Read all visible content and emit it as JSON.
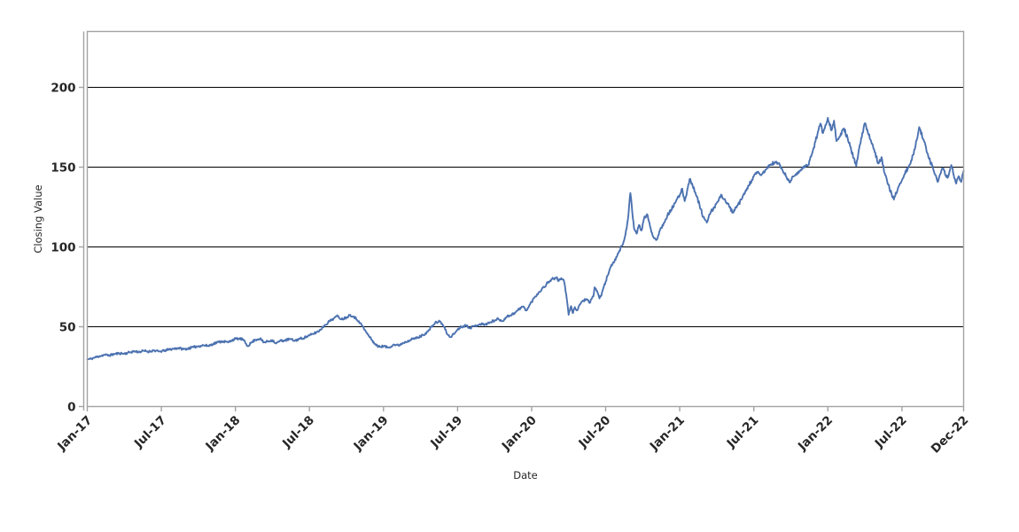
{
  "figure": {
    "background": "#ffffff"
  },
  "chart_data": {
    "type": "line",
    "title": "",
    "xlabel": "Date",
    "ylabel": "Closing Value",
    "legend": "none",
    "x_axis": {
      "unit": "months since Jan-2017",
      "range_months": [
        0,
        71
      ],
      "ticks": [
        {
          "m": 0,
          "label": "Jan-17"
        },
        {
          "m": 6,
          "label": "Jul-17"
        },
        {
          "m": 12,
          "label": "Jan-18"
        },
        {
          "m": 18,
          "label": "Jul-18"
        },
        {
          "m": 24,
          "label": "Jan-19"
        },
        {
          "m": 30,
          "label": "Jul-19"
        },
        {
          "m": 36,
          "label": "Jan-20"
        },
        {
          "m": 42,
          "label": "Jul-20"
        },
        {
          "m": 48,
          "label": "Jan-21"
        },
        {
          "m": 54,
          "label": "Jul-21"
        },
        {
          "m": 60,
          "label": "Jan-22"
        },
        {
          "m": 66,
          "label": "Jul-22"
        },
        {
          "m": 71,
          "label": "Dec-22"
        }
      ],
      "tick_rotation_deg": 45
    },
    "y_axis": {
      "ticks": [
        0,
        50,
        100,
        150,
        200
      ],
      "range": [
        0,
        235
      ]
    },
    "grid": {
      "horizontal_at": [
        50,
        100,
        150,
        200
      ],
      "color": "#000000",
      "vertical": false
    },
    "styles": {
      "line_color": "#4c72b0",
      "line_width": 1.9,
      "spine_color": "#a3a3a3",
      "tick_label_color": "#262626",
      "axis_label_color": "#262626",
      "tick_label_bold": true
    },
    "series": [
      {
        "name": "Closing Value",
        "points_format": "[months_since_Jan_2017, closing_value]",
        "points": [
          [
            0,
            29.5
          ],
          [
            0.3,
            29.9
          ],
          [
            0.6,
            30.7
          ],
          [
            1,
            31.6
          ],
          [
            1.4,
            32.4
          ],
          [
            1.8,
            32.1
          ],
          [
            2.2,
            32.9
          ],
          [
            2.6,
            33.4
          ],
          [
            3,
            33.1
          ],
          [
            3.4,
            33.9
          ],
          [
            3.8,
            34.6
          ],
          [
            4.2,
            34.2
          ],
          [
            4.6,
            34.9
          ],
          [
            5,
            34.4
          ],
          [
            5.4,
            35.2
          ],
          [
            5.8,
            34.4
          ],
          [
            6.2,
            34.9
          ],
          [
            6.6,
            35.7
          ],
          [
            7,
            36.2
          ],
          [
            7.4,
            36.7
          ],
          [
            7.8,
            35.9
          ],
          [
            8.2,
            36.4
          ],
          [
            8.6,
            37.2
          ],
          [
            9,
            37.8
          ],
          [
            9.4,
            38.4
          ],
          [
            9.8,
            38.0
          ],
          [
            10.2,
            39.3
          ],
          [
            10.6,
            40.4
          ],
          [
            11,
            40.9
          ],
          [
            11.4,
            40.2
          ],
          [
            11.7,
            41.5
          ],
          [
            12,
            42.4
          ],
          [
            12.3,
            42.5
          ],
          [
            12.6,
            42.1
          ],
          [
            13,
            37.9
          ],
          [
            13.3,
            40.1
          ],
          [
            13.6,
            41.8
          ],
          [
            14,
            42.6
          ],
          [
            14.3,
            40.1
          ],
          [
            14.6,
            40.8
          ],
          [
            15,
            41.6
          ],
          [
            15.3,
            39.5
          ],
          [
            15.6,
            41.1
          ],
          [
            16,
            41.4
          ],
          [
            16.4,
            42.3
          ],
          [
            16.8,
            41.2
          ],
          [
            17.2,
            42.4
          ],
          [
            17.6,
            43.2
          ],
          [
            18,
            44.5
          ],
          [
            18.4,
            45.9
          ],
          [
            18.8,
            47.5
          ],
          [
            19.2,
            50.7
          ],
          [
            19.6,
            53.3
          ],
          [
            20,
            55.5
          ],
          [
            20.3,
            56.7
          ],
          [
            20.6,
            54.7
          ],
          [
            21,
            55.9
          ],
          [
            21.3,
            57.5
          ],
          [
            21.6,
            56.3
          ],
          [
            22,
            53.5
          ],
          [
            22.3,
            50.3
          ],
          [
            22.6,
            46.5
          ],
          [
            23,
            42.3
          ],
          [
            23.3,
            39.3
          ],
          [
            23.6,
            37.4
          ],
          [
            24,
            37.9
          ],
          [
            24.4,
            36.9
          ],
          [
            24.8,
            38.8
          ],
          [
            25.2,
            38.3
          ],
          [
            25.6,
            39.9
          ],
          [
            26,
            41.3
          ],
          [
            26.4,
            42.4
          ],
          [
            26.8,
            43.2
          ],
          [
            27.2,
            44.8
          ],
          [
            27.6,
            47.0
          ],
          [
            28,
            51.0
          ],
          [
            28.3,
            52.9
          ],
          [
            28.6,
            53.3
          ],
          [
            28.9,
            49.9
          ],
          [
            29.2,
            45.0
          ],
          [
            29.4,
            43.5
          ],
          [
            29.7,
            45.4
          ],
          [
            30,
            48.3
          ],
          [
            30.3,
            50.0
          ],
          [
            30.7,
            50.9
          ],
          [
            31,
            49.4
          ],
          [
            31.4,
            50.4
          ],
          [
            31.8,
            51.7
          ],
          [
            32.2,
            51.4
          ],
          [
            32.6,
            52.5
          ],
          [
            33,
            54.0
          ],
          [
            33.3,
            54.9
          ],
          [
            33.6,
            53.5
          ],
          [
            34,
            56.3
          ],
          [
            34.4,
            57.7
          ],
          [
            34.7,
            59.0
          ],
          [
            35,
            61.1
          ],
          [
            35.3,
            62.7
          ],
          [
            35.6,
            60.2
          ],
          [
            36,
            65.7
          ],
          [
            36.3,
            69.0
          ],
          [
            36.6,
            71.7
          ],
          [
            37,
            74.9
          ],
          [
            37.3,
            77.5
          ],
          [
            37.6,
            79.7
          ],
          [
            38,
            80.7
          ],
          [
            38.2,
            78.7
          ],
          [
            38.4,
            80.5
          ],
          [
            38.6,
            79.3
          ],
          [
            38.8,
            70.5
          ],
          [
            39,
            57.5
          ],
          [
            39.2,
            62.9
          ],
          [
            39.35,
            58.5
          ],
          [
            39.5,
            62.3
          ],
          [
            39.7,
            60.3
          ],
          [
            39.9,
            63.9
          ],
          [
            40.1,
            65.9
          ],
          [
            40.4,
            67.3
          ],
          [
            40.7,
            64.9
          ],
          [
            41,
            69.0
          ],
          [
            41.1,
            74.7
          ],
          [
            41.3,
            72.5
          ],
          [
            41.5,
            67.7
          ],
          [
            41.7,
            71.3
          ],
          [
            42,
            78.3
          ],
          [
            42.3,
            85.3
          ],
          [
            42.6,
            90.3
          ],
          [
            42.9,
            93.7
          ],
          [
            43.1,
            97.5
          ],
          [
            43.35,
            100.9
          ],
          [
            43.6,
            107.7
          ],
          [
            43.8,
            117.3
          ],
          [
            44,
            133.8
          ],
          [
            44.15,
            122.1
          ],
          [
            44.3,
            111.5
          ],
          [
            44.5,
            108.3
          ],
          [
            44.7,
            113.7
          ],
          [
            44.9,
            110.3
          ],
          [
            45.1,
            117.5
          ],
          [
            45.35,
            120.5
          ],
          [
            45.6,
            112.7
          ],
          [
            45.85,
            106.5
          ],
          [
            46.1,
            104.3
          ],
          [
            46.4,
            110.5
          ],
          [
            46.7,
            114.9
          ],
          [
            47,
            119.7
          ],
          [
            47.3,
            123.3
          ],
          [
            47.65,
            127.7
          ],
          [
            48,
            132.5
          ],
          [
            48.2,
            136.5
          ],
          [
            48.4,
            128.7
          ],
          [
            48.6,
            135.3
          ],
          [
            48.8,
            142.5
          ],
          [
            49,
            139.7
          ],
          [
            49.3,
            133.1
          ],
          [
            49.6,
            126.5
          ],
          [
            49.9,
            118.7
          ],
          [
            50.2,
            115.3
          ],
          [
            50.5,
            121.5
          ],
          [
            50.8,
            124.9
          ],
          [
            51.1,
            128.5
          ],
          [
            51.4,
            132.5
          ],
          [
            51.7,
            128.9
          ],
          [
            52,
            125.5
          ],
          [
            52.3,
            121.5
          ],
          [
            52.6,
            124.7
          ],
          [
            53,
            129.7
          ],
          [
            53.3,
            134.3
          ],
          [
            53.6,
            138.5
          ],
          [
            54,
            144.3
          ],
          [
            54.3,
            146.5
          ],
          [
            54.6,
            144.9
          ],
          [
            55,
            148.7
          ],
          [
            55.4,
            151.9
          ],
          [
            55.7,
            152.8
          ],
          [
            56,
            152.3
          ],
          [
            56.3,
            148.7
          ],
          [
            56.6,
            144.3
          ],
          [
            56.9,
            140.4
          ],
          [
            57.2,
            144.1
          ],
          [
            57.6,
            147.1
          ],
          [
            58,
            149.3
          ],
          [
            58.4,
            151.3
          ],
          [
            58.7,
            158.1
          ],
          [
            59,
            166.2
          ],
          [
            59.2,
            172.3
          ],
          [
            59.4,
            177.3
          ],
          [
            59.6,
            171.3
          ],
          [
            59.8,
            176.3
          ],
          [
            60,
            180.9
          ],
          [
            60.3,
            173.1
          ],
          [
            60.5,
            179.1
          ],
          [
            60.7,
            166.3
          ],
          [
            61,
            169.3
          ],
          [
            61.3,
            174.3
          ],
          [
            61.6,
            168.3
          ],
          [
            61.9,
            160.3
          ],
          [
            62.3,
            150.7
          ],
          [
            62.6,
            164.1
          ],
          [
            63,
            177.5
          ],
          [
            63.3,
            170.3
          ],
          [
            63.6,
            164.7
          ],
          [
            64.1,
            152.3
          ],
          [
            64.35,
            156.3
          ],
          [
            64.6,
            146.3
          ],
          [
            65,
            136.3
          ],
          [
            65.35,
            129.7
          ],
          [
            65.7,
            137.3
          ],
          [
            66.2,
            145.3
          ],
          [
            66.7,
            152.3
          ],
          [
            67.05,
            161.3
          ],
          [
            67.4,
            175.1
          ],
          [
            67.75,
            167.3
          ],
          [
            68.1,
            158.3
          ],
          [
            68.55,
            148.3
          ],
          [
            68.9,
            140.7
          ],
          [
            69.3,
            149.1
          ],
          [
            69.7,
            143.3
          ],
          [
            70,
            151.3
          ],
          [
            70.4,
            139.7
          ],
          [
            70.6,
            144.3
          ],
          [
            70.8,
            140.7
          ],
          [
            71,
            147.6
          ]
        ]
      }
    ],
    "noise_texture": {
      "seed": 11,
      "points_per_month": 21,
      "base_amplitude": 0.55,
      "amplitude_per_value": 0.004
    }
  }
}
